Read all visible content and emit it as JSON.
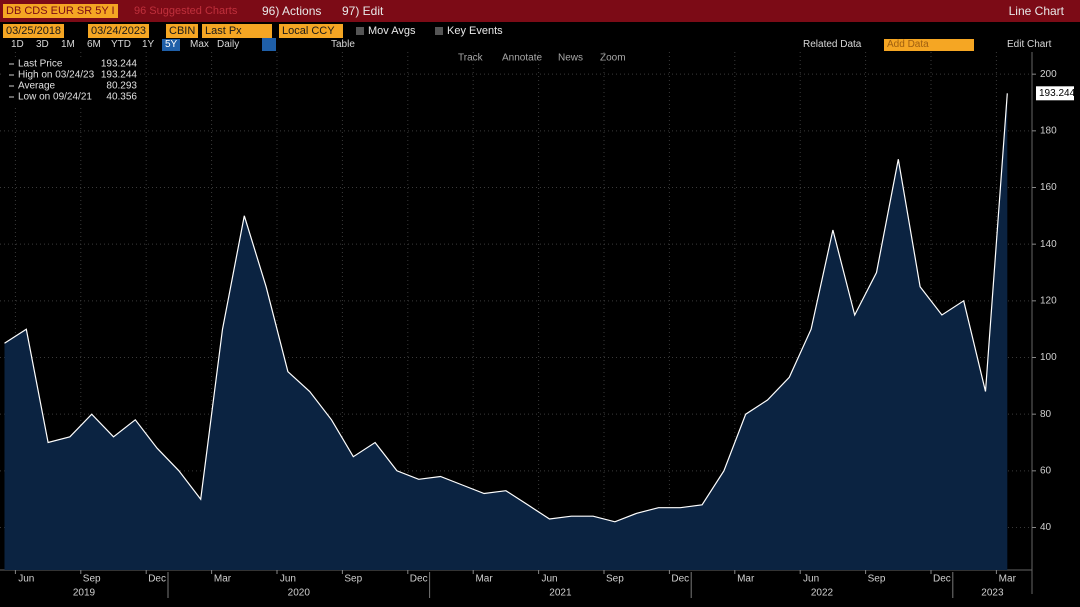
{
  "toolbar": {
    "ticker": "DB CDS EUR SR 5Y I",
    "suggested": "96 Suggested Charts",
    "actions": "96) Actions",
    "edit": "97) Edit",
    "chart_kind": "Line Chart",
    "start_date": "03/25/2018",
    "end_date": "03/24/2023",
    "source": "CBIN",
    "field": "Last Px",
    "currency": "Local CCY",
    "mov_avgs": "Mov Avgs",
    "key_events": "Key Events",
    "periods": [
      "1D",
      "3D",
      "1M",
      "6M",
      "YTD",
      "1Y",
      "5Y",
      "Max"
    ],
    "frequency": "Daily",
    "table": "Table",
    "related_data": "Related Data",
    "add_data": "Add Data",
    "edit_chart": "Edit Chart",
    "tools": [
      "Track",
      "Annotate",
      "News",
      "Zoom"
    ]
  },
  "chart_data": {
    "type": "line",
    "legend_stats": [
      {
        "label": "Last Price",
        "value": 193.244
      },
      {
        "label": "High on 03/24/23",
        "value": 193.244
      },
      {
        "label": "Average",
        "value": 80.293
      },
      {
        "label": "Low on 09/24/21",
        "value": 40.356
      }
    ],
    "x": [
      "2019-05",
      "2019-06",
      "2019-07",
      "2019-08",
      "2019-09",
      "2019-10",
      "2019-11",
      "2019-12",
      "2020-01",
      "2020-02",
      "2020-03",
      "2020-04",
      "2020-05",
      "2020-06",
      "2020-07",
      "2020-08",
      "2020-09",
      "2020-10",
      "2020-11",
      "2020-12",
      "2021-01",
      "2021-02",
      "2021-03",
      "2021-04",
      "2021-05",
      "2021-06",
      "2021-07",
      "2021-08",
      "2021-09",
      "2021-10",
      "2021-11",
      "2021-12",
      "2022-01",
      "2022-02",
      "2022-03",
      "2022-04",
      "2022-05",
      "2022-06",
      "2022-07",
      "2022-08",
      "2022-09",
      "2022-10",
      "2022-11",
      "2022-12",
      "2023-01",
      "2023-02",
      "2023-03"
    ],
    "series": [
      {
        "name": "Last Price",
        "color": "#ffffff",
        "fill": "#0b2341",
        "values": [
          105,
          110,
          70,
          72,
          80,
          72,
          78,
          68,
          60,
          50,
          110,
          150,
          125,
          95,
          88,
          78,
          65,
          70,
          60,
          57,
          58,
          55,
          52,
          53,
          48,
          43,
          44,
          44,
          42,
          45,
          47,
          47,
          48,
          60,
          80,
          85,
          93,
          110,
          145,
          115,
          130,
          170,
          125,
          115,
          120,
          88,
          193.244
        ]
      }
    ],
    "ylim": [
      25,
      205
    ],
    "yticks": [
      40,
      60,
      80,
      100,
      120,
      140,
      160,
      180,
      200
    ],
    "xticks": [
      {
        "value": "2019-06",
        "label": "Jun"
      },
      {
        "value": "2019-09",
        "label": "Sep"
      },
      {
        "value": "2019-12",
        "label": "Dec"
      },
      {
        "value": "2020-03",
        "label": "Mar"
      },
      {
        "value": "2020-06",
        "label": "Jun"
      },
      {
        "value": "2020-09",
        "label": "Sep"
      },
      {
        "value": "2020-12",
        "label": "Dec"
      },
      {
        "value": "2021-03",
        "label": "Mar"
      },
      {
        "value": "2021-06",
        "label": "Jun"
      },
      {
        "value": "2021-09",
        "label": "Sep"
      },
      {
        "value": "2021-12",
        "label": "Dec"
      },
      {
        "value": "2022-03",
        "label": "Mar"
      },
      {
        "value": "2022-06",
        "label": "Jun"
      },
      {
        "value": "2022-09",
        "label": "Sep"
      },
      {
        "value": "2022-12",
        "label": "Dec"
      },
      {
        "value": "2023-03",
        "label": "Mar"
      }
    ],
    "year_labels": [
      "2019",
      "2020",
      "2021",
      "2022",
      "2023"
    ],
    "grid": true
  }
}
